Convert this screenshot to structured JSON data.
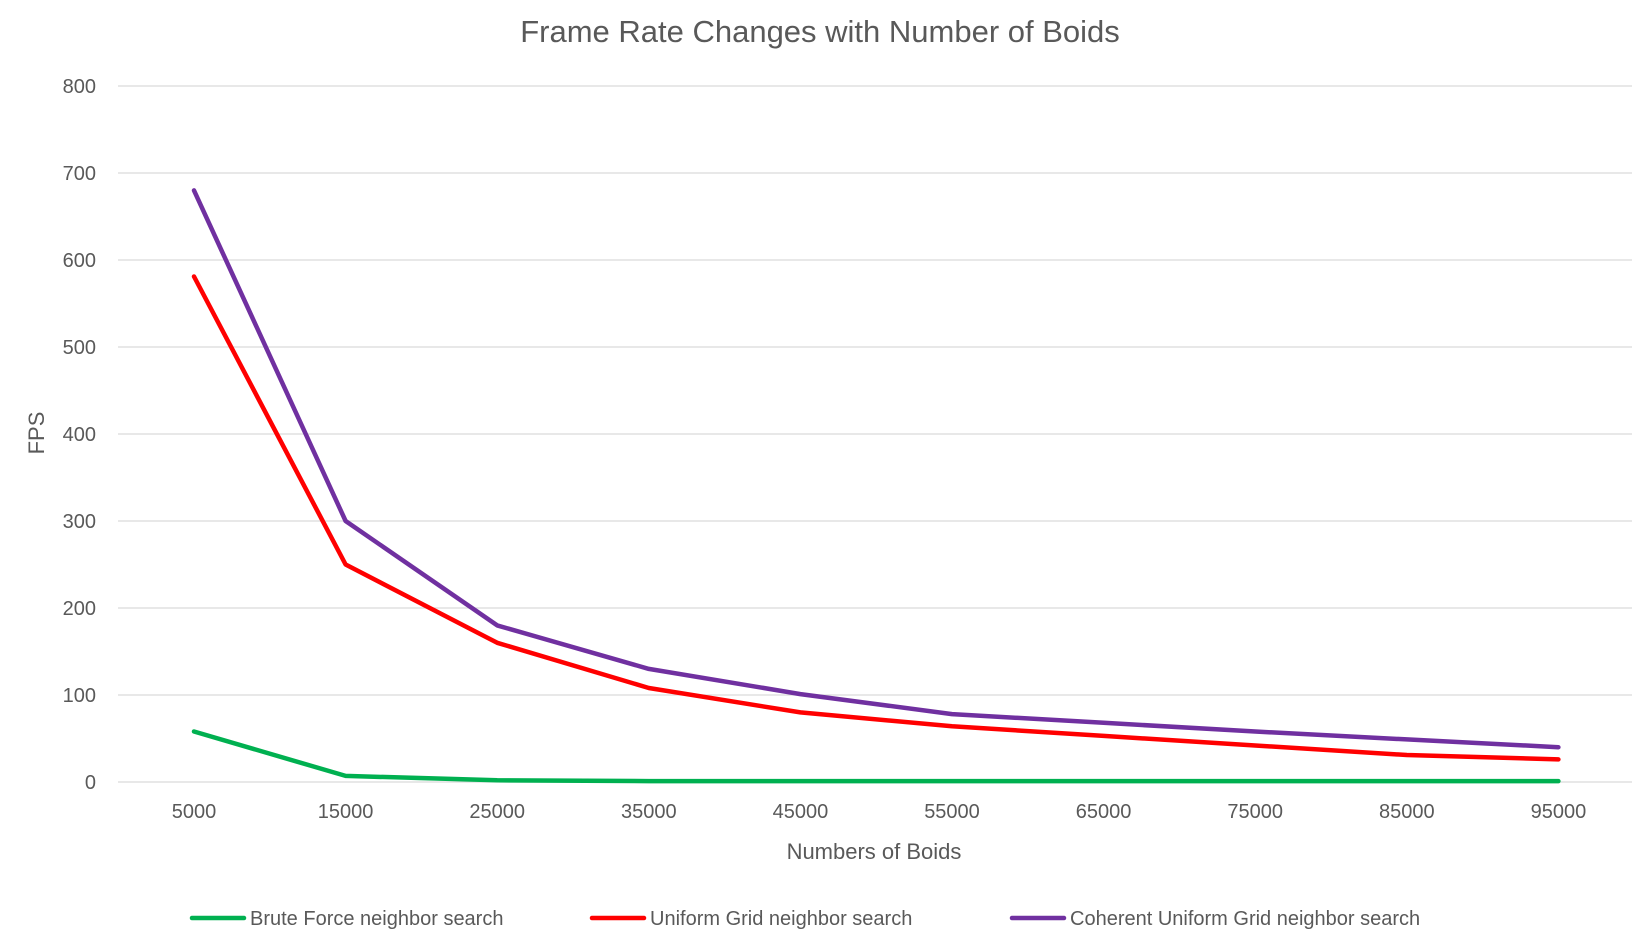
{
  "colors": {
    "background": "#ffffff",
    "grid": "#d9d9d9",
    "text": "#595959",
    "title": "#595959"
  },
  "chart_data": {
    "type": "line",
    "title": "Frame Rate Changes with Number of Boids",
    "xlabel": "Numbers of Boids",
    "ylabel": "FPS",
    "ylim": [
      0,
      800
    ],
    "yticks": [
      0,
      100,
      200,
      300,
      400,
      500,
      600,
      700,
      800
    ],
    "grid": true,
    "legend_position": "bottom",
    "categories": [
      "5000",
      "15000",
      "25000",
      "35000",
      "45000",
      "55000",
      "65000",
      "75000",
      "85000",
      "95000"
    ],
    "series": [
      {
        "name": "Brute Force neighbor search",
        "color": "#00b050",
        "values": [
          58,
          7,
          2,
          1,
          1,
          1,
          1,
          1,
          1,
          1
        ]
      },
      {
        "name": "Uniform Grid neighbor search",
        "color": "#ff0000",
        "values": [
          581,
          250,
          160,
          108,
          80,
          64,
          53,
          42,
          31,
          26
        ]
      },
      {
        "name": "Coherent Uniform Grid neighbor search",
        "color": "#7030a0",
        "values": [
          680,
          300,
          180,
          130,
          101,
          78,
          68,
          58,
          49,
          40
        ]
      }
    ]
  }
}
